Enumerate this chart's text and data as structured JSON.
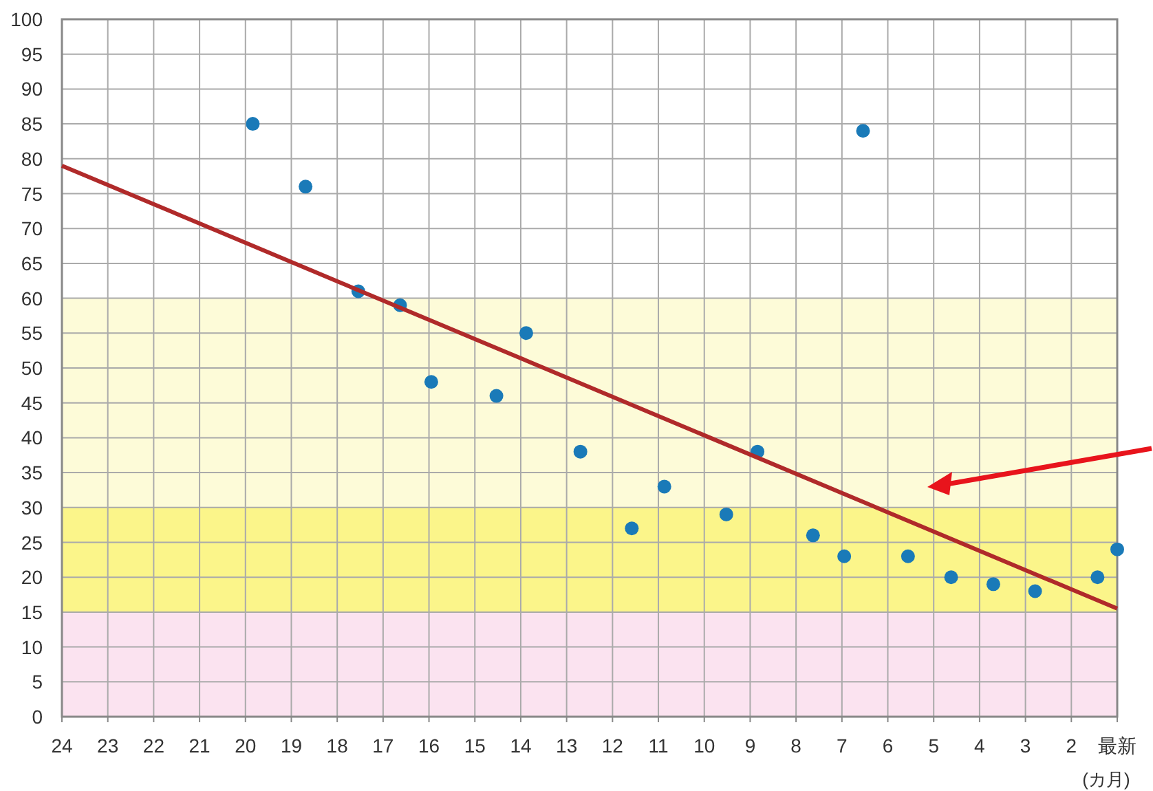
{
  "chart_data": {
    "type": "scatter",
    "xlabel": "(カ月)",
    "xlim": [
      24,
      1
    ],
    "ylim": [
      0,
      100
    ],
    "xticks": [
      24,
      23,
      22,
      21,
      20,
      19,
      18,
      17,
      16,
      15,
      14,
      13,
      12,
      11,
      10,
      9,
      8,
      7,
      6,
      5,
      4,
      3,
      2,
      {
        "value": 1,
        "label": "最新"
      }
    ],
    "yticks": [
      0,
      5,
      10,
      15,
      20,
      25,
      30,
      35,
      40,
      45,
      50,
      55,
      60,
      65,
      70,
      75,
      80,
      85,
      90,
      95,
      100
    ],
    "grid": true,
    "bands": [
      {
        "axis": "y",
        "from": 0,
        "to": 15,
        "color": "#fbe3f0"
      },
      {
        "axis": "y",
        "from": 15,
        "to": 30,
        "color": "#fbf58a"
      },
      {
        "axis": "y",
        "from": 30,
        "to": 60,
        "color": "#fdfbd8"
      }
    ],
    "series": [
      {
        "marker": "circle",
        "color": "#1a7ab8",
        "x": [
          19.84,
          18.69,
          17.54,
          16.63,
          15.95,
          14.53,
          13.88,
          12.7,
          11.58,
          10.87,
          9.52,
          8.84,
          7.63,
          6.95,
          6.54,
          5.56,
          4.62,
          3.7,
          2.79,
          1.43,
          1
        ],
        "values": [
          85,
          76,
          61,
          59,
          48,
          46,
          55,
          38,
          27,
          33,
          29,
          38,
          26,
          23,
          84,
          23,
          20,
          19,
          18,
          20,
          24
        ]
      },
      {
        "type": "line",
        "color": "#b02a2a",
        "x": [
          24,
          1
        ],
        "values": [
          79,
          15.5
        ]
      }
    ]
  }
}
